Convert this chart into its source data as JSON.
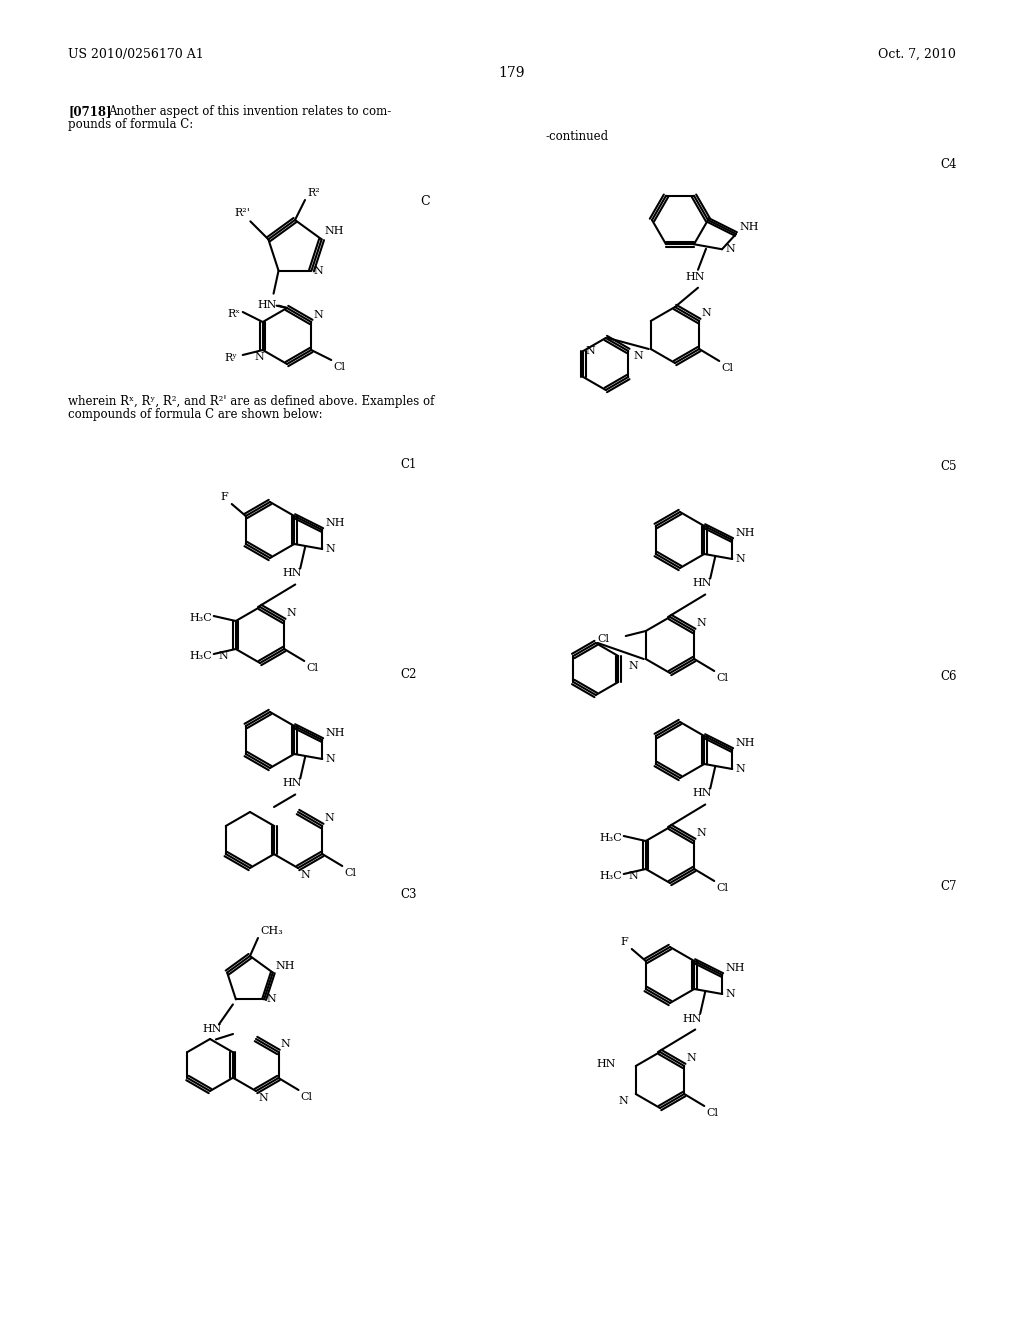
{
  "page_number": "179",
  "header_left": "US 2010/0256170 A1",
  "header_right": "Oct. 7, 2010",
  "background_color": "#ffffff",
  "text_color": "#000000",
  "paragraph_text": "[0718]  Another aspect of this invention relates to compounds of formula C:",
  "formula_c_label": "C",
  "continued_label": "-continued",
  "wherein_text": "wherein Rˣ, Rʸ, R², and R²’ are as defined above. Examples of\ncompounds of formula C are shown below:",
  "compound_labels": [
    "C1",
    "C2",
    "C3",
    "C4",
    "C5",
    "C6",
    "C7"
  ]
}
